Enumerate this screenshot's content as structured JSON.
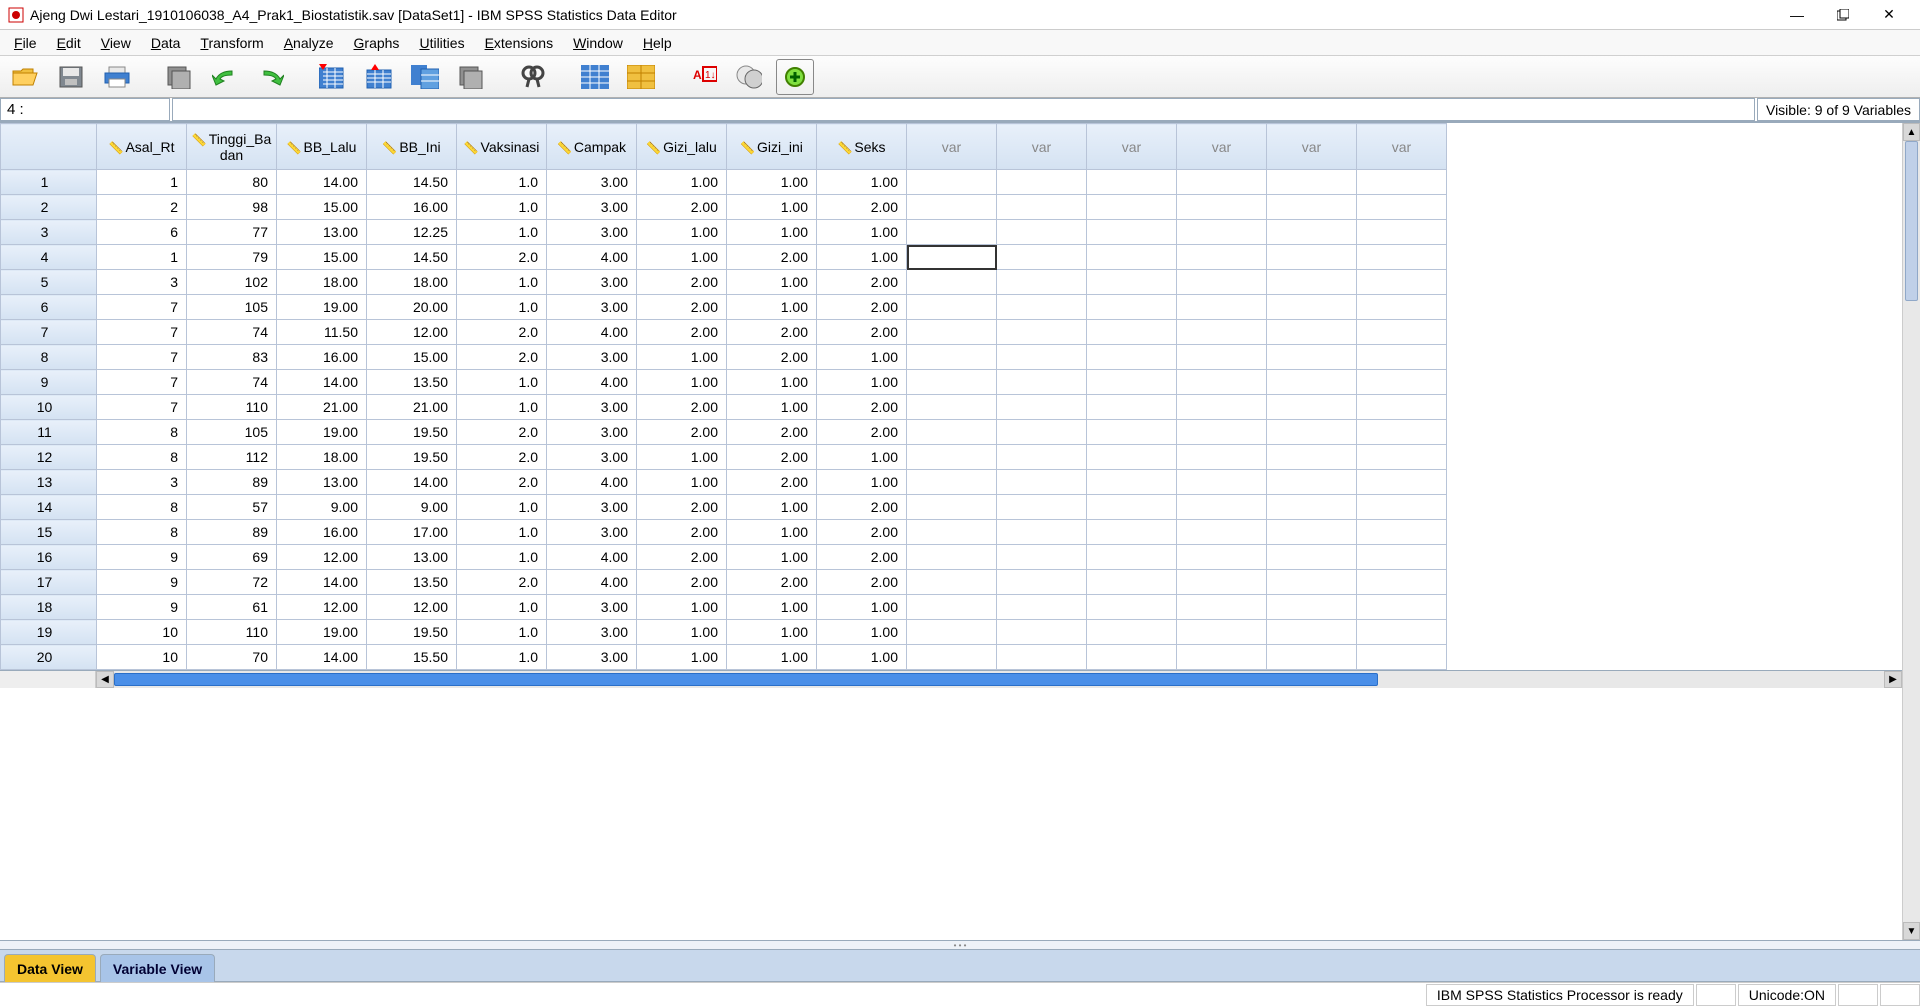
{
  "window": {
    "title": "Ajeng Dwi Lestari_1910106038_A4_Prak1_Biostatistik.sav [DataSet1] - IBM SPSS Statistics Data Editor"
  },
  "menu": {
    "items": [
      "File",
      "Edit",
      "View",
      "Data",
      "Transform",
      "Analyze",
      "Graphs",
      "Utilities",
      "Extensions",
      "Window",
      "Help"
    ]
  },
  "infobar": {
    "cell_indicator": "4 :",
    "visible_text": "Visible: 9 of 9 Variables"
  },
  "columns": [
    "Asal_Rt",
    "Tinggi_Badan",
    "BB_Lalu",
    "BB_Ini",
    "Vaksinasi",
    "Campak",
    "Gizi_lalu",
    "Gizi_ini",
    "Seks"
  ],
  "empty_var_label": "var",
  "empty_var_count": 6,
  "rows": [
    [
      "1",
      "80",
      "14.00",
      "14.50",
      "1.0",
      "3.00",
      "1.00",
      "1.00",
      "1.00"
    ],
    [
      "2",
      "98",
      "15.00",
      "16.00",
      "1.0",
      "3.00",
      "2.00",
      "1.00",
      "2.00"
    ],
    [
      "6",
      "77",
      "13.00",
      "12.25",
      "1.0",
      "3.00",
      "1.00",
      "1.00",
      "1.00"
    ],
    [
      "1",
      "79",
      "15.00",
      "14.50",
      "2.0",
      "4.00",
      "1.00",
      "2.00",
      "1.00"
    ],
    [
      "3",
      "102",
      "18.00",
      "18.00",
      "1.0",
      "3.00",
      "2.00",
      "1.00",
      "2.00"
    ],
    [
      "7",
      "105",
      "19.00",
      "20.00",
      "1.0",
      "3.00",
      "2.00",
      "1.00",
      "2.00"
    ],
    [
      "7",
      "74",
      "11.50",
      "12.00",
      "2.0",
      "4.00",
      "2.00",
      "2.00",
      "2.00"
    ],
    [
      "7",
      "83",
      "16.00",
      "15.00",
      "2.0",
      "3.00",
      "1.00",
      "2.00",
      "1.00"
    ],
    [
      "7",
      "74",
      "14.00",
      "13.50",
      "1.0",
      "4.00",
      "1.00",
      "1.00",
      "1.00"
    ],
    [
      "7",
      "110",
      "21.00",
      "21.00",
      "1.0",
      "3.00",
      "2.00",
      "1.00",
      "2.00"
    ],
    [
      "8",
      "105",
      "19.00",
      "19.50",
      "2.0",
      "3.00",
      "2.00",
      "2.00",
      "2.00"
    ],
    [
      "8",
      "112",
      "18.00",
      "19.50",
      "2.0",
      "3.00",
      "1.00",
      "2.00",
      "1.00"
    ],
    [
      "3",
      "89",
      "13.00",
      "14.00",
      "2.0",
      "4.00",
      "1.00",
      "2.00",
      "1.00"
    ],
    [
      "8",
      "57",
      "9.00",
      "9.00",
      "1.0",
      "3.00",
      "2.00",
      "1.00",
      "2.00"
    ],
    [
      "8",
      "89",
      "16.00",
      "17.00",
      "1.0",
      "3.00",
      "2.00",
      "1.00",
      "2.00"
    ],
    [
      "9",
      "69",
      "12.00",
      "13.00",
      "1.0",
      "4.00",
      "2.00",
      "1.00",
      "2.00"
    ],
    [
      "9",
      "72",
      "14.00",
      "13.50",
      "2.0",
      "4.00",
      "2.00",
      "2.00",
      "2.00"
    ],
    [
      "9",
      "61",
      "12.00",
      "12.00",
      "1.0",
      "3.00",
      "1.00",
      "1.00",
      "1.00"
    ],
    [
      "10",
      "110",
      "19.00",
      "19.50",
      "1.0",
      "3.00",
      "1.00",
      "1.00",
      "1.00"
    ],
    [
      "10",
      "70",
      "14.00",
      "15.50",
      "1.0",
      "3.00",
      "1.00",
      "1.00",
      "1.00"
    ]
  ],
  "selected_cell": {
    "row": 4,
    "col": 10
  },
  "tabs": {
    "data_view": "Data View",
    "variable_view": "Variable View"
  },
  "status": {
    "processor": "IBM SPSS Statistics Processor is ready",
    "unicode": "Unicode:ON"
  },
  "styling": {
    "header_bg_top": "#e8f0fa",
    "header_bg_bottom": "#d4e2f2",
    "grid_border": "#b8c4d8",
    "active_tab_bg": "#f4c430",
    "inactive_tab_bg": "#a8c4e8",
    "hscroll_thumb": "#4a8fe8"
  }
}
